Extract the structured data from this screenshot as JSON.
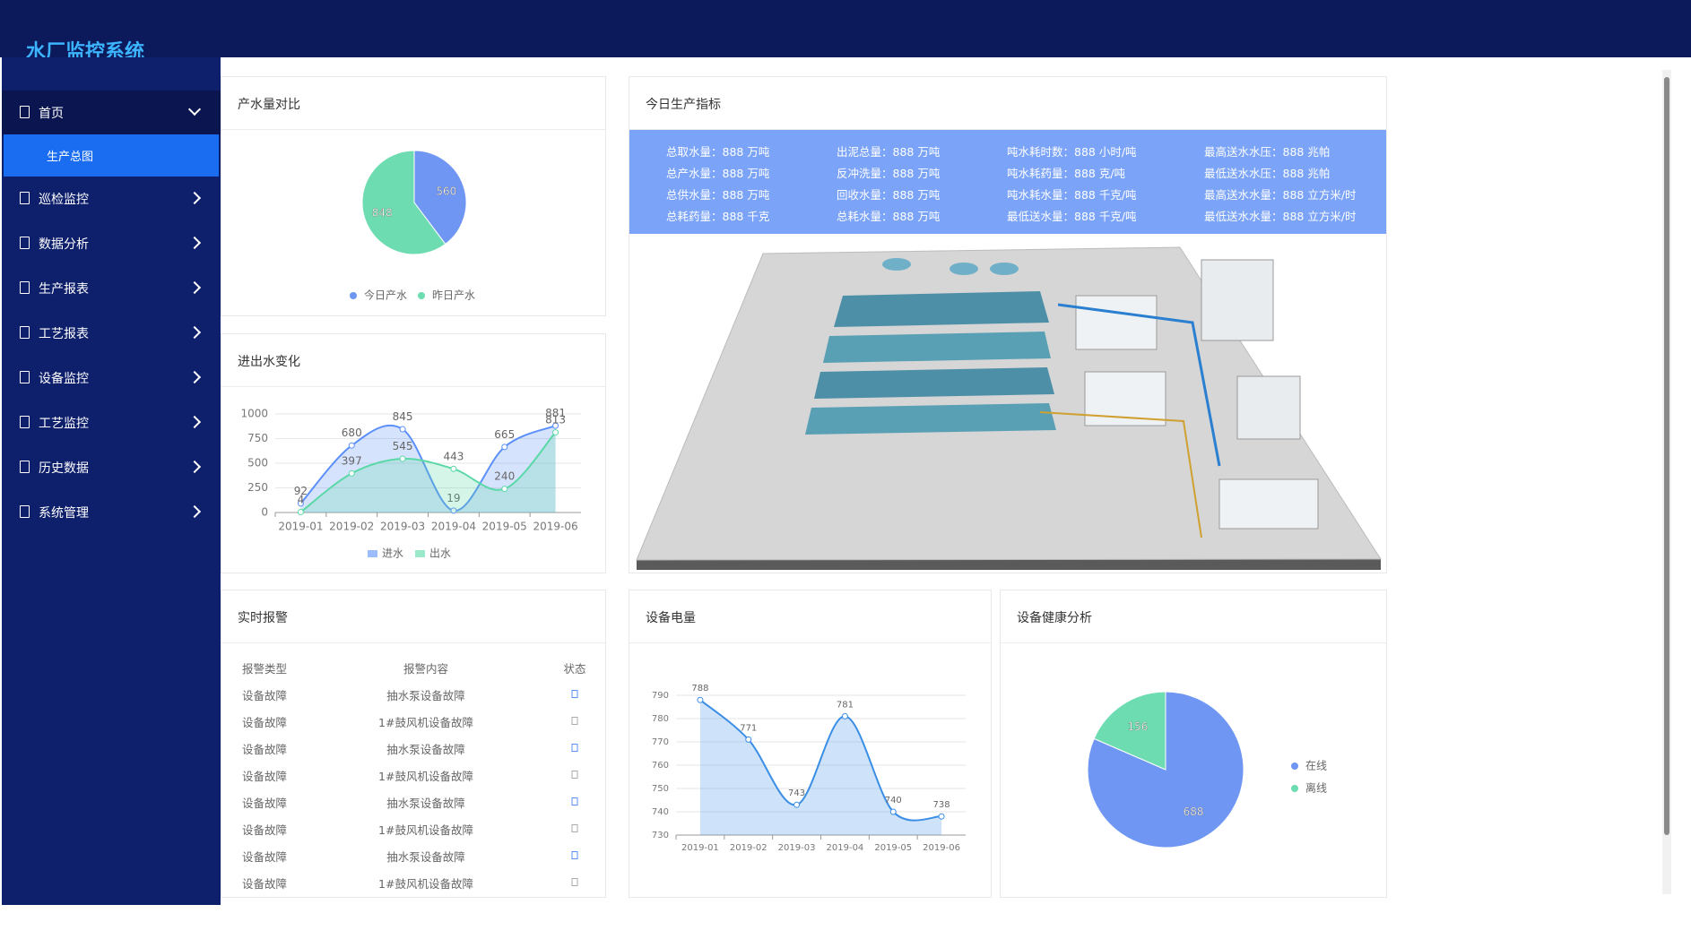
{
  "header": {
    "title": "水厂监控系统"
  },
  "sidebar": [
    {
      "label": "首页",
      "children": [
        "生产总图"
      ]
    },
    {
      "label": "巡检监控"
    },
    {
      "label": "数据分析"
    },
    {
      "label": "生产报表"
    },
    {
      "label": "工艺报表"
    },
    {
      "label": "设备监控"
    },
    {
      "label": "工艺监控"
    },
    {
      "label": "历史数据"
    },
    {
      "label": "系统管理"
    }
  ],
  "indicators": {
    "title": "今日生产指标",
    "rows": [
      [
        "总取水量：888 万吨",
        "出泥总量：888 万吨",
        "吨水耗时数：888 小时/吨",
        "最高送水水压：888 兆帕"
      ],
      [
        "总产水量：888 万吨",
        "反冲洗量：888 万吨",
        "吨水耗药量：888 克/吨",
        "最低送水水压：888 兆帕"
      ],
      [
        "总供水量：888 万吨",
        "回收水量：888 万吨",
        "吨水耗水量：888 千克/吨",
        "最高送水水量：888 立方米/时"
      ],
      [
        "总耗药量：888 千克",
        "总耗水量：888 万吨",
        "最低送水量：888 千克/吨",
        "最低送水水量：888 立方米/时"
      ]
    ]
  },
  "alarms": {
    "title": "实时报警",
    "columns": [
      "报警类型",
      "报警内容",
      "状态"
    ],
    "rows": [
      [
        "设备故障",
        "抽水泵设备故障"
      ],
      [
        "设备故障",
        "1#鼓风机设备故障"
      ],
      [
        "设备故障",
        "抽水泵设备故障"
      ],
      [
        "设备故障",
        "1#鼓风机设备故障"
      ],
      [
        "设备故障",
        "抽水泵设备故障"
      ],
      [
        "设备故障",
        "1#鼓风机设备故障"
      ],
      [
        "设备故障",
        "抽水泵设备故障"
      ],
      [
        "设备故障",
        "1#鼓风机设备故障"
      ]
    ]
  },
  "chart_data": [
    {
      "type": "pie",
      "title": "产水量对比",
      "categories": [
        "今日产水",
        "昨日产水"
      ],
      "values": [
        560,
        848
      ],
      "colors": [
        "#6f96f2",
        "#6ddcb0"
      ]
    },
    {
      "type": "line",
      "title": "进出水变化",
      "smooth": true,
      "area": true,
      "grid": true,
      "categories": [
        "2019-01",
        "2019-02",
        "2019-03",
        "2019-04",
        "2019-05",
        "2019-06"
      ],
      "series": [
        {
          "name": "进水",
          "color": "#5b8ff9",
          "values": [
            92,
            680,
            845,
            19,
            665,
            881
          ]
        },
        {
          "name": "出水",
          "color": "#5ad8a6",
          "values": [
            4,
            397,
            545,
            443,
            240,
            813
          ]
        }
      ],
      "ylim": [
        0,
        1000
      ],
      "yticks": [
        0,
        250,
        500,
        750,
        1000
      ]
    },
    {
      "type": "line",
      "title": "设备电量",
      "smooth": true,
      "area": true,
      "grid": true,
      "categories": [
        "2019-01",
        "2019-02",
        "2019-03",
        "2019-04",
        "2019-05",
        "2019-06"
      ],
      "series": [
        {
          "color": "#3a8ee6",
          "values": [
            788,
            771,
            743,
            781,
            740,
            738
          ]
        }
      ],
      "ylim": [
        730,
        790
      ],
      "yticks": [
        730,
        740,
        750,
        760,
        770,
        780,
        790
      ]
    },
    {
      "type": "pie",
      "title": "设备健康分析",
      "categories": [
        "在线",
        "离线"
      ],
      "values": [
        688,
        156
      ],
      "colors": [
        "#6f96f2",
        "#6ddcb0"
      ]
    }
  ]
}
